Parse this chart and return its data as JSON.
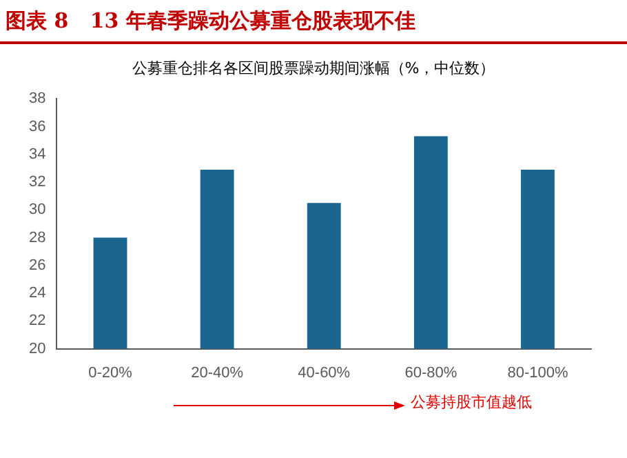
{
  "chart_data": {
    "type": "bar",
    "title": "图表 8   13 年春季躁动公募重仓股表现不佳",
    "subtitle": "公募重仓排名各区间股票躁动期间涨幅（%，中位数）",
    "categories": [
      "0-20%",
      "20-40%",
      "40-60%",
      "60-80%",
      "80-100%"
    ],
    "values": [
      28.0,
      32.9,
      30.5,
      35.3,
      32.9
    ],
    "color": "#1a6690",
    "ylim": [
      20,
      38
    ],
    "yticks": [
      20,
      22,
      24,
      26,
      28,
      30,
      32,
      34,
      36,
      38
    ],
    "grid": false,
    "legend": false,
    "annotations": [
      "公募持股市值越低"
    ]
  }
}
